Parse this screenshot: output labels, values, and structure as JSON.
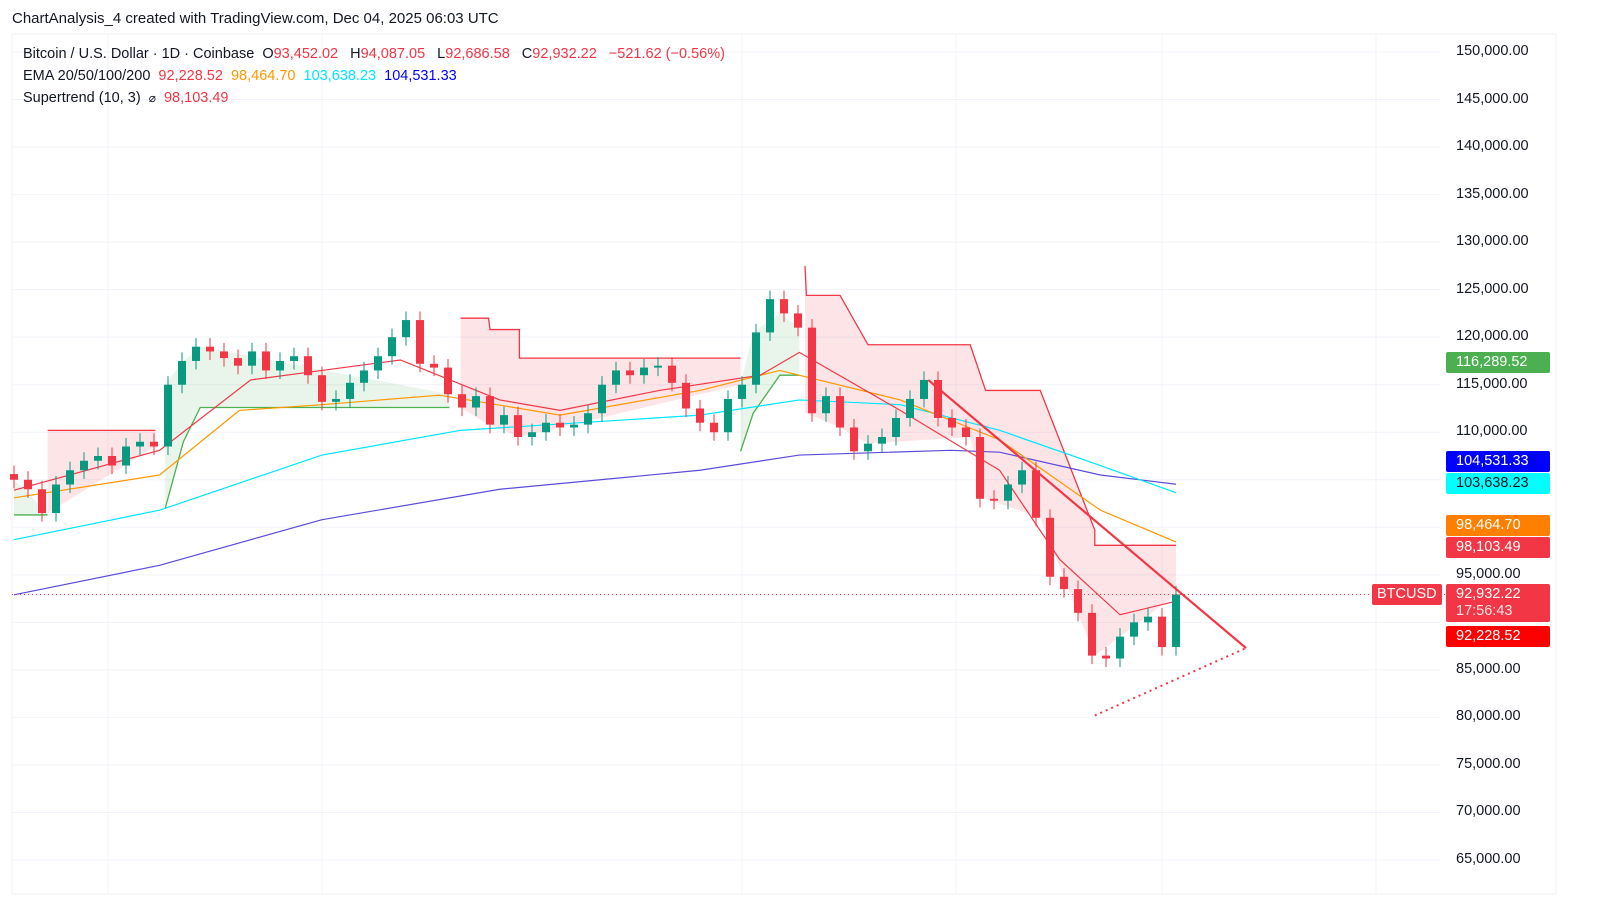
{
  "caption": "ChartAnalysis_4 created with TradingView.com, Dec 04, 2025 06:03 UTC",
  "legend": {
    "symbol": "Bitcoin / U.S. Dollar · 1D · Coinbase",
    "o_label": "O",
    "open": "93,452.02",
    "h_label": "H",
    "high": "94,087.05",
    "l_label": "L",
    "low": "92,686.58",
    "c_label": "C",
    "close": "92,932.22",
    "change": "−521.62 (−0.56%)",
    "ema_label": "EMA 20/50/100/200",
    "ema20": "92,228.52",
    "ema50": "98,464.70",
    "ema100": "103,638.23",
    "ema200": "104,531.33",
    "supertrend_label": "Supertrend (10, 3)",
    "supertrend_icon": "⌀",
    "supertrend": "98,103.49"
  },
  "colors": {
    "up": "#089981",
    "down": "#f23645",
    "ema20": "#f23645",
    "ema50": "#ff9800",
    "ema100": "#00e5ff",
    "ema200": "#2962ff",
    "st_up": "#4caf50",
    "st_down": "#f23645"
  },
  "price_labels": [
    {
      "text": "116,289.52",
      "price": 116289.52,
      "color": "#4caf50",
      "text_color": "#ffffff"
    },
    {
      "text": "104,531.33",
      "price": 104531.33,
      "color": "#0000ff",
      "text_color": "#ffffff"
    },
    {
      "text": "103,638.23",
      "price": 103638.23,
      "color": "#00ffff",
      "text_color": "#131722"
    },
    {
      "text": "98,464.70",
      "price": 98464.7,
      "color": "#ff8000",
      "text_color": "#ffffff"
    },
    {
      "text": "98,103.49",
      "price": 98103.49,
      "color": "#f23645",
      "text_color": "#ffffff"
    },
    {
      "text": "92,228.52",
      "price": 92228.52,
      "color": "#ff0000",
      "text_color": "#ffffff"
    }
  ],
  "current": {
    "symbol": "BTCUSD",
    "price_text": "92,932.22",
    "countdown": "17:56:43",
    "price": 92932.22
  },
  "chart_data": {
    "type": "candlestick",
    "ylim": [
      62000,
      152000
    ],
    "y_ticks": [
      "150,000.00",
      "145,000.00",
      "140,000.00",
      "135,000.00",
      "130,000.00",
      "125,000.00",
      "120,000.00",
      "115,000.00",
      "110,000.00",
      "95,000.00",
      "85,000.00",
      "80,000.00",
      "75,000.00",
      "70,000.00",
      "65,000.00"
    ],
    "y_tick_values": [
      150000,
      145000,
      140000,
      135000,
      130000,
      125000,
      120000,
      115000,
      110000,
      95000,
      85000,
      80000,
      75000,
      70000,
      65000
    ],
    "close": [
      105000,
      104000,
      101500,
      104500,
      106000,
      107000,
      107500,
      106500,
      108500,
      109000,
      108500,
      115000,
      117500,
      119000,
      118500,
      117800,
      117000,
      118500,
      116500,
      117500,
      118000,
      116000,
      113200,
      113500,
      115200,
      116500,
      118000,
      120000,
      121800,
      117200,
      116800,
      114000,
      112600,
      113800,
      110800,
      111800,
      109500,
      110000,
      111000,
      110500,
      110800,
      112000,
      115000,
      116500,
      116000,
      116800,
      117000,
      115200,
      112500,
      111000,
      110000,
      113500,
      115000,
      120500,
      124000,
      122500,
      121000,
      112000,
      113800,
      110500,
      108000,
      108800,
      109500,
      111500,
      113500,
      115500,
      111500,
      110500,
      109500,
      103000,
      102800,
      104500,
      106000,
      101000,
      94800,
      93500,
      91000,
      86500,
      86200,
      88500,
      90000,
      90600,
      87400,
      92932
    ],
    "ema20": [
      [
        0,
        103900
      ],
      [
        10.4,
        108100
      ],
      [
        16.9,
        115500
      ],
      [
        22,
        116500
      ],
      [
        27.6,
        117600
      ],
      [
        34.7,
        113400
      ],
      [
        39,
        112300
      ],
      [
        46.1,
        114400
      ],
      [
        53.3,
        116000
      ],
      [
        56.1,
        118400
      ],
      [
        63.3,
        112300
      ],
      [
        70.4,
        106000
      ],
      [
        74.7,
        96600
      ],
      [
        79,
        90800
      ],
      [
        83,
        92228
      ]
    ],
    "ema50": [
      [
        0,
        103100
      ],
      [
        10.4,
        105500
      ],
      [
        16.1,
        112300
      ],
      [
        22,
        112900
      ],
      [
        30.4,
        113900
      ],
      [
        39,
        111800
      ],
      [
        49,
        114400
      ],
      [
        54.7,
        116500
      ],
      [
        63.3,
        113400
      ],
      [
        70.4,
        109200
      ],
      [
        77.6,
        101800
      ],
      [
        83,
        98465
      ]
    ],
    "ema100": [
      [
        0,
        98700
      ],
      [
        10.4,
        101800
      ],
      [
        22,
        107600
      ],
      [
        31.9,
        110200
      ],
      [
        49,
        111800
      ],
      [
        56.1,
        113400
      ],
      [
        63.3,
        112900
      ],
      [
        70.4,
        110200
      ],
      [
        77.6,
        106500
      ],
      [
        83,
        103638
      ]
    ],
    "ema200": [
      [
        0,
        92900
      ],
      [
        10.4,
        96000
      ],
      [
        22,
        100800
      ],
      [
        34.7,
        104000
      ],
      [
        49,
        106000
      ],
      [
        56.1,
        107600
      ],
      [
        66.9,
        108100
      ],
      [
        70.4,
        107900
      ],
      [
        77.6,
        105500
      ],
      [
        83,
        104531
      ]
    ],
    "supertrend_down": [
      [
        [
          2.4,
          110200
        ],
        [
          10.1,
          110200
        ]
      ],
      [
        [
          31.9,
          122000
        ],
        [
          33.9,
          122000
        ],
        [
          34,
          120800
        ],
        [
          36.1,
          120800
        ],
        [
          36.1,
          117800
        ],
        [
          51.9,
          117800
        ]
      ],
      [
        [
          56.5,
          127500
        ],
        [
          56.6,
          124400
        ],
        [
          59,
          124400
        ],
        [
          61,
          119200
        ],
        [
          68.3,
          119200
        ],
        [
          69.4,
          114400
        ],
        [
          73.3,
          114400
        ],
        [
          77.2,
          99700
        ],
        [
          77.2,
          98103
        ],
        [
          83,
          98103
        ]
      ]
    ],
    "supertrend_up": [
      [
        [
          0,
          101300
        ],
        [
          2.4,
          101300
        ]
      ],
      [
        [
          10.8,
          102000
        ],
        [
          12.1,
          109000
        ],
        [
          13.3,
          112600
        ],
        [
          31.1,
          112600
        ]
      ],
      [
        [
          51.9,
          108000
        ],
        [
          52.8,
          112000
        ],
        [
          54.7,
          116000
        ],
        [
          56.1,
          116000
        ]
      ]
    ],
    "trendline": [
      [
        65.3,
        115500
      ],
      [
        88,
        87300
      ]
    ],
    "support_line": [
      [
        77.2,
        80200
      ],
      [
        88,
        87300
      ]
    ]
  }
}
